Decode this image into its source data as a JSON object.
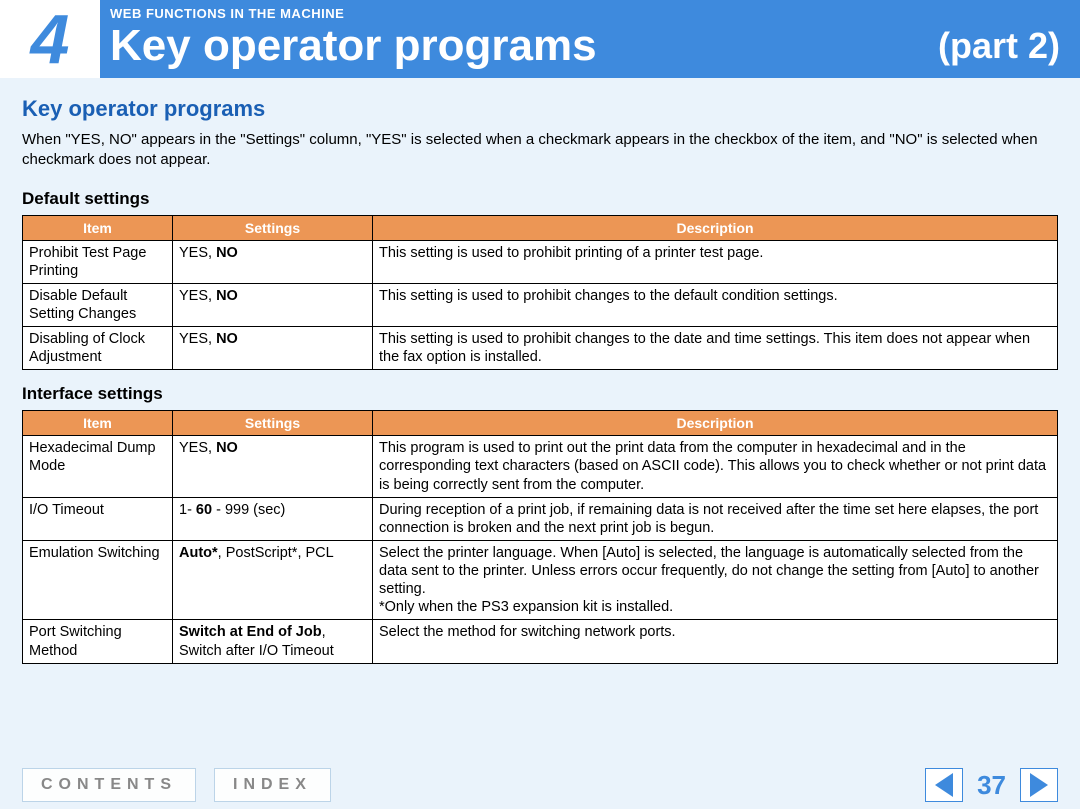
{
  "header": {
    "chapter_num": "4",
    "supertitle": "WEB FUNCTIONS IN THE MACHINE",
    "title": "Key operator programs",
    "part": "(part 2)"
  },
  "section_title": "Key operator programs",
  "intro": "When \"YES, NO\" appears in the \"Settings\" column, \"YES\" is selected when a checkmark appears in the checkbox of the item, and \"NO\" is selected when checkmark does not appear.",
  "default_heading": "Default settings",
  "interface_heading": "Interface settings",
  "col_labels": {
    "item": "Item",
    "settings": "Settings",
    "desc": "Description"
  },
  "default_rows": [
    {
      "item": "Prohibit Test Page Printing",
      "set_pre": "YES, ",
      "set_bold": "NO",
      "set_post": "",
      "desc": "This setting is used to prohibit printing of a printer test page."
    },
    {
      "item": "Disable Default Setting Changes",
      "set_pre": "YES, ",
      "set_bold": "NO",
      "set_post": "",
      "desc": "This setting is used to prohibit changes to the default condition settings."
    },
    {
      "item": "Disabling of Clock Adjustment",
      "set_pre": "YES, ",
      "set_bold": "NO",
      "set_post": "",
      "desc": "This setting is used to prohibit changes to the date and time settings. This item does not appear when the fax option is installed."
    }
  ],
  "interface_rows": [
    {
      "item": "Hexadecimal Dump Mode",
      "set_pre": "YES, ",
      "set_bold": "NO",
      "set_post": "",
      "desc": "This program is used to print out the print data from the computer in hexadecimal and in the corresponding text characters (based on ASCII code). This allows you to check whether or not print data is being correctly sent from the computer."
    },
    {
      "item": "I/O Timeout",
      "set_pre": "1- ",
      "set_bold": "60",
      "set_post": " - 999 (sec)",
      "desc": "During reception of a print job, if remaining data is not received after the time set here elapses, the port connection is broken and the next print job is begun."
    },
    {
      "item": "Emulation Switching",
      "set_pre": "",
      "set_bold": "Auto*",
      "set_post": ", PostScript*, PCL",
      "desc": "Select the printer language. When [Auto] is selected, the language is automatically selected from the data sent to the printer. Unless errors occur frequently, do not change the setting from [Auto] to another setting.\n*Only when the PS3 expansion kit is installed."
    },
    {
      "item": "Port Switching Method",
      "set_pre": "",
      "set_bold": "Switch at End of Job",
      "set_post": ", Switch after I/O Timeout",
      "desc": "Select the method for switching network ports."
    }
  ],
  "footer": {
    "contents": "CONTENTS",
    "index": "INDEX",
    "page": "37"
  },
  "colors": {
    "header_bg": "#3e8add",
    "accent": "#ec9655",
    "page_bg": "#eaf3fb"
  }
}
